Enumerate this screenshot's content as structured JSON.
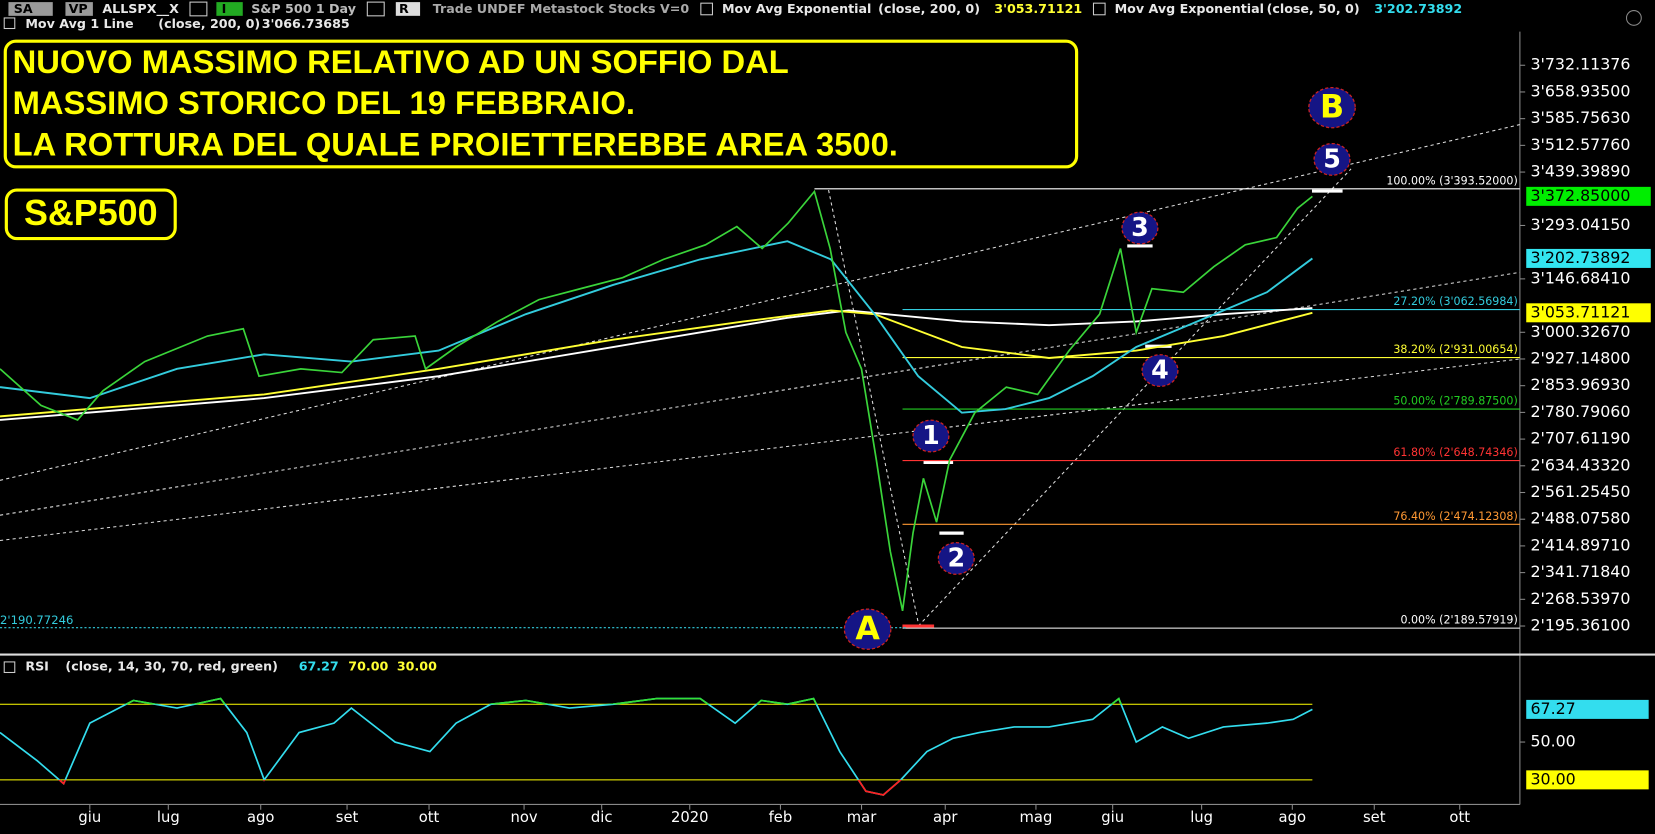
{
  "toolbar": {
    "items": [
      "SA",
      "VP",
      "ALLSPX__X",
      "I",
      "S&P 500  1 Day",
      "R",
      "Trade  UNDEF  Metastock  Stocks  V=0"
    ],
    "studies": [
      {
        "name": "Mov Avg Exponential",
        "params": "(close,  200,  0)",
        "value": "3'053.71121",
        "color": "#ffff33"
      },
      {
        "name": "Mov Avg Exponential",
        "params": "(close,  50,  0)",
        "value": "3'202.73892",
        "color": "#33ddee"
      },
      {
        "name": "Mov Avg 1 Line",
        "params": "(close,  200,  0)",
        "value": "3'066.73685",
        "color": "#ffffff"
      }
    ]
  },
  "annotations": {
    "headline": [
      "NUOVO MASSIMO RELATIVO AD UN SOFFIO DAL",
      "MASSIMO STORICO DEL 19 FEBBRAIO.",
      "LA ROTTURA DEL QUALE PROIETTEREBBE AREA 3500."
    ],
    "ticker": "S&P500",
    "waves": [
      {
        "label": "1",
        "color": "#ffffff"
      },
      {
        "label": "2",
        "color": "#ffffff"
      },
      {
        "label": "3",
        "color": "#ffffff"
      },
      {
        "label": "4",
        "color": "#ffffff"
      },
      {
        "label": "5",
        "color": "#ffffff"
      },
      {
        "label": "A",
        "color": "#ffff00"
      },
      {
        "label": "B",
        "color": "#ffff00"
      }
    ]
  },
  "chart_data": [
    {
      "type": "line",
      "xlim": [
        -1.03,
        16.4
      ],
      "ylim": [
        2123,
        3801
      ],
      "yticks": [
        {
          "value": 3732.11376,
          "label": "3'732.11376"
        },
        {
          "value": 3658.935,
          "label": "3'658.93500"
        },
        {
          "value": 3585.7563,
          "label": "3'585.75630"
        },
        {
          "value": 3512.5776,
          "label": "3'512.57760"
        },
        {
          "value": 3439.3989,
          "label": "3'439.39890"
        },
        {
          "value": 3293.0415,
          "label": "3'293.04150"
        },
        {
          "value": 3146.6841,
          "label": "3'146.68410"
        },
        {
          "value": 3000.3267,
          "label": "3'000.32670"
        },
        {
          "value": 2927.148,
          "label": "2'927.14800"
        },
        {
          "value": 2853.9693,
          "label": "2'853.96930"
        },
        {
          "value": 2780.7906,
          "label": "2'780.79060"
        },
        {
          "value": 2707.6119,
          "label": "2'707.61190"
        },
        {
          "value": 2634.4332,
          "label": "2'634.43320"
        },
        {
          "value": 2561.2545,
          "label": "2'561.25450"
        },
        {
          "value": 2488.0758,
          "label": "2'488.07580"
        },
        {
          "value": 2414.8971,
          "label": "2'414.89710"
        },
        {
          "value": 2341.7184,
          "label": "2'341.71840"
        },
        {
          "value": 2268.5397,
          "label": "2'268.53970"
        },
        {
          "value": 2195.361,
          "label": "2'195.36100"
        }
      ],
      "series": [
        {
          "color": "#ffffff",
          "x": [
            -1.03,
            2,
            4,
            6,
            8,
            8.7,
            10,
            11,
            12,
            13,
            14.02
          ],
          "values": [
            2760,
            2820,
            2880,
            2960,
            3040,
            3060,
            3030,
            3020,
            3030,
            3050,
            3066.73685
          ]
        },
        {
          "color": "#ffff33",
          "x": [
            -1.03,
            2,
            4,
            6,
            7.5,
            8.5,
            9,
            10,
            11,
            12,
            13,
            14.02
          ],
          "values": [
            2770,
            2830,
            2900,
            2980,
            3030,
            3060,
            3050,
            2960,
            2930,
            2950,
            2990,
            3053.71121
          ]
        },
        {
          "color": "#33ccdd",
          "x": [
            -1.03,
            0,
            1,
            2,
            3,
            4,
            5,
            6,
            7,
            8,
            8.5,
            9,
            9.5,
            10,
            10.5,
            11,
            11.5,
            12,
            12.5,
            13,
            13.5,
            14.02
          ],
          "values": [
            2850,
            2820,
            2900,
            2940,
            2920,
            2950,
            3050,
            3130,
            3200,
            3250,
            3200,
            3050,
            2880,
            2780,
            2790,
            2820,
            2880,
            2960,
            3010,
            3060,
            3110,
            3202.73892
          ]
        },
        {
          "color": "#3ad43a",
          "x": [
            -1.03,
            -0.56,
            -0.14,
            0.15,
            0.63,
            1.35,
            1.76,
            1.94,
            2.42,
            2.89,
            3.25,
            3.73,
            3.85,
            4.2,
            4.68,
            5.15,
            5.63,
            6.11,
            6.58,
            7.06,
            7.42,
            7.71,
            8.01,
            8.31,
            8.49,
            8.67,
            8.85,
            9.02,
            9.18,
            9.32,
            9.44,
            9.56,
            9.71,
            9.86,
            10.15,
            10.51,
            10.87,
            11.23,
            11.58,
            11.82,
            12.0,
            12.18,
            12.54,
            12.89,
            13.25,
            13.61,
            13.85,
            14.02
          ],
          "values": [
            2900,
            2800,
            2760,
            2840,
            2920,
            2990,
            3010,
            2880,
            2900,
            2890,
            2980,
            2990,
            2900,
            2960,
            3030,
            3090,
            3120,
            3150,
            3200,
            3240,
            3290,
            3230,
            3300,
            3386,
            3230,
            3000,
            2900,
            2650,
            2400,
            2237,
            2450,
            2600,
            2480,
            2650,
            2780,
            2850,
            2830,
            2950,
            3050,
            3230,
            3000,
            3120,
            3110,
            3180,
            3240,
            3260,
            3340,
            3372.85
          ]
        }
      ],
      "last_labels": [
        {
          "value": 3372.85,
          "label": "3'372.85000",
          "color": "#00ee00"
        },
        {
          "value": 3202.73892,
          "label": "3'202.73892",
          "color": "#33e5f0"
        },
        {
          "value": 3053.71121,
          "label": "3'053.71121",
          "color": "#ffff00"
        }
      ],
      "left_label": {
        "value": 2190.77246,
        "label": "2'190.77246",
        "color": "#33ccdd"
      },
      "levels": [
        {
          "value": 3393.52,
          "label": "100.00% (3'393.52000)",
          "color": "#ffffff"
        },
        {
          "value": 3062.56984,
          "label": "27.20% (3'062.56984)",
          "color": "#33ccdd"
        },
        {
          "value": 2931.00654,
          "label": "38.20% (2'931.00654)",
          "color": "#ffff33"
        },
        {
          "value": 2789.875,
          "label": "50.00% (2'789.87500)",
          "color": "#22cc22"
        },
        {
          "value": 2648.74346,
          "label": "61.80% (2'648.74346)",
          "color": "#ff3333"
        },
        {
          "value": 2474.12308,
          "label": "76.40% (2'474.12308)",
          "color": "#ff9933"
        },
        {
          "value": 2189.57919,
          "label": "0.00% (2'189.57919)",
          "color": "#ffffff"
        }
      ]
    },
    {
      "type": "line",
      "header": "RSI",
      "params": "(close,  14,  30,  70,  red,  green)",
      "xlim": [
        -1.03,
        16.4
      ],
      "ylim": [
        17,
        84
      ],
      "xticks": [
        {
          "value": 0,
          "label": "giu"
        },
        {
          "value": 0.9,
          "label": "lug"
        },
        {
          "value": 1.96,
          "label": "ago"
        },
        {
          "value": 2.95,
          "label": "set"
        },
        {
          "value": 3.89,
          "label": "ott"
        },
        {
          "value": 4.98,
          "label": "nov"
        },
        {
          "value": 5.87,
          "label": "dic"
        },
        {
          "value": 6.88,
          "label": "2020"
        },
        {
          "value": 7.92,
          "label": "feb"
        },
        {
          "value": 8.85,
          "label": "mar"
        },
        {
          "value": 9.81,
          "label": "apr"
        },
        {
          "value": 10.85,
          "label": "mag"
        },
        {
          "value": 11.73,
          "label": "giu"
        },
        {
          "value": 12.75,
          "label": "lug"
        },
        {
          "value": 13.79,
          "label": "ago"
        },
        {
          "value": 14.73,
          "label": "set"
        },
        {
          "value": 15.71,
          "label": "ott"
        }
      ],
      "yticks": [
        {
          "value": 50,
          "label": "50.00"
        }
      ],
      "levels": [
        {
          "value": 70,
          "label": "70.00",
          "color": "#ffff00"
        },
        {
          "value": 30,
          "label": "30.00",
          "color": "#ffff00"
        }
      ],
      "upper_color": "#33e033",
      "lower_color": "#ff2020",
      "series": [
        {
          "color": "#33ddee",
          "x": [
            -1.03,
            -0.6,
            -0.3,
            0,
            0.5,
            1,
            1.5,
            1.8,
            2.0,
            2.4,
            2.8,
            3.0,
            3.5,
            3.9,
            4.2,
            4.6,
            5.0,
            5.5,
            6,
            6.5,
            7,
            7.4,
            7.7,
            8.0,
            8.3,
            8.6,
            8.9,
            9.1,
            9.3,
            9.6,
            9.9,
            10.2,
            10.6,
            11,
            11.5,
            11.8,
            12.0,
            12.3,
            12.6,
            13,
            13.5,
            13.8,
            14.02
          ],
          "values": [
            55,
            40,
            28,
            60,
            72,
            68,
            73,
            55,
            30,
            55,
            60,
            68,
            50,
            45,
            60,
            70,
            72,
            68,
            70,
            73,
            73,
            60,
            72,
            70,
            73,
            45,
            24,
            22,
            30,
            45,
            52,
            55,
            58,
            58,
            62,
            73,
            50,
            58,
            52,
            58,
            60,
            62,
            67.27
          ]
        }
      ]
    }
  ]
}
